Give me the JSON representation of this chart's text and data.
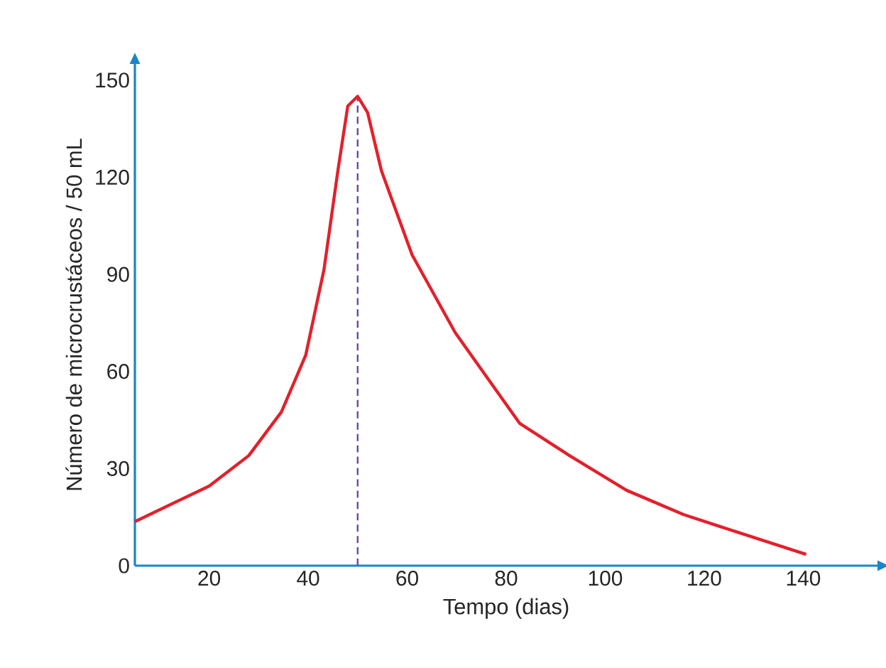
{
  "chart_data": {
    "type": "line",
    "xlabel": "Tempo (dias)",
    "ylabel": "Número de microcrustáceos / 50 mL",
    "xlim": [
      5,
      155
    ],
    "ylim": [
      0,
      155
    ],
    "xticks": [
      20,
      40,
      60,
      80,
      100,
      120,
      140
    ],
    "yticks": [
      0,
      30,
      60,
      90,
      120,
      150
    ],
    "grid": false,
    "marker": "none",
    "line_style": "solid",
    "series": [
      {
        "color": "#e3202b",
        "x": [
          5,
          20,
          28,
          34.6,
          39.5,
          43.2,
          46,
          48,
          50,
          52,
          54.8,
          61,
          69.7,
          82.7,
          92.8,
          104.3,
          115.8,
          127.4,
          140.6
        ],
        "values": [
          13.6,
          24.6,
          34,
          47.5,
          65,
          91.5,
          122,
          142,
          145,
          140,
          122,
          96,
          72,
          44,
          34,
          23.3,
          15.8,
          10,
          3.5
        ]
      }
    ],
    "ref_lines": [
      {
        "axis": "x",
        "value": 50,
        "color": "#6a4a9a",
        "line_style": "dashed"
      }
    ]
  }
}
